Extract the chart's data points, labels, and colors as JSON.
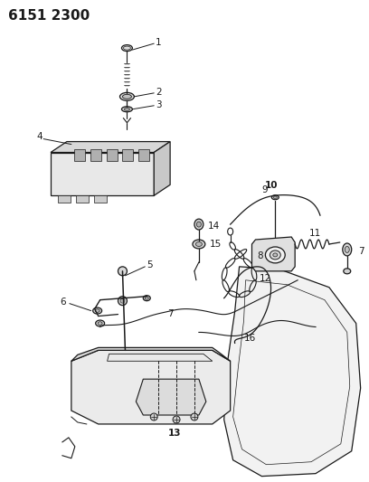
{
  "title": "6151 2300",
  "bg": "#ffffff",
  "lc": "#1a1a1a",
  "fig_w": 4.08,
  "fig_h": 5.33,
  "dpi": 100
}
